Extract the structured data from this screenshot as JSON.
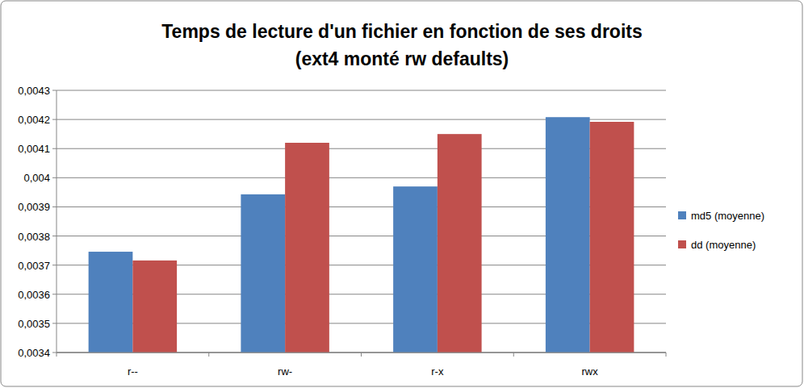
{
  "chart_data": {
    "type": "bar",
    "title": "Temps de lecture d'un fichier en fonction de ses droits",
    "subtitle": "(ext4 monté rw defaults)",
    "categories": [
      "r--",
      "rw-",
      "r-x",
      "rwx"
    ],
    "series": [
      {
        "name": "md5 (moyenne)",
        "color": "#4f81bd",
        "values": [
          0.003746,
          0.003943,
          0.00397,
          0.004208
        ]
      },
      {
        "name": "dd (moyenne)",
        "color": "#c0504d",
        "values": [
          0.003716,
          0.00412,
          0.00415,
          0.004192
        ]
      }
    ],
    "ylim": [
      0.0034,
      0.0043
    ],
    "yticks": [
      {
        "value": 0.0034,
        "label": "0,0034"
      },
      {
        "value": 0.0035,
        "label": "0,0035"
      },
      {
        "value": 0.0036,
        "label": "0,0036"
      },
      {
        "value": 0.0037,
        "label": "0,0037"
      },
      {
        "value": 0.0038,
        "label": "0,0038"
      },
      {
        "value": 0.0039,
        "label": "0,0039"
      },
      {
        "value": 0.004,
        "label": "0,004"
      },
      {
        "value": 0.0041,
        "label": "0,0041"
      },
      {
        "value": 0.0042,
        "label": "0,0042"
      },
      {
        "value": 0.0043,
        "label": "0,0043"
      }
    ],
    "grid": true,
    "legend": "right"
  }
}
